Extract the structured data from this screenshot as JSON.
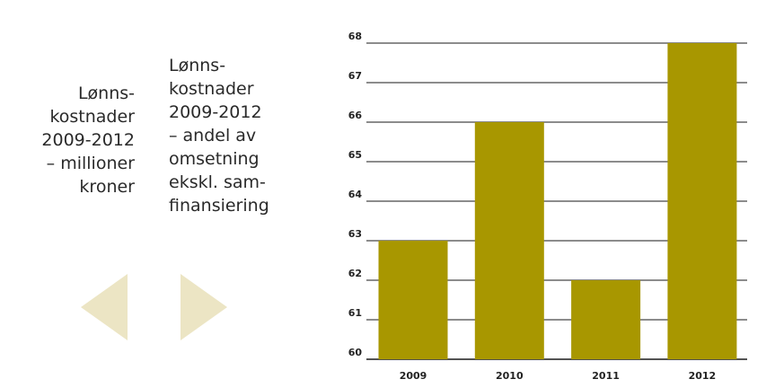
{
  "tabs": [
    {
      "text": "Lønns-\nkostnader\n2009-2012\n– millioner\nkroner",
      "active": true
    },
    {
      "text": "Lønns-\nkostnader\n2009-2012\n – andel av\nomsetning\nekskl. sam-\nfinansiering",
      "active": false
    }
  ],
  "nav": {
    "prev_icon": "triangle-left-icon",
    "next_icon": "triangle-right-icon",
    "arrow_color": "#ece5c4"
  },
  "chart_data": {
    "type": "bar",
    "categories": [
      "2009",
      "2010",
      "2011",
      "2012"
    ],
    "values": [
      63,
      66,
      62,
      68
    ],
    "ylim": [
      60,
      68
    ],
    "yticks": [
      60,
      61,
      62,
      63,
      64,
      65,
      66,
      67,
      68
    ],
    "grid": true,
    "legend": "none",
    "bar_color": "#a89700"
  }
}
